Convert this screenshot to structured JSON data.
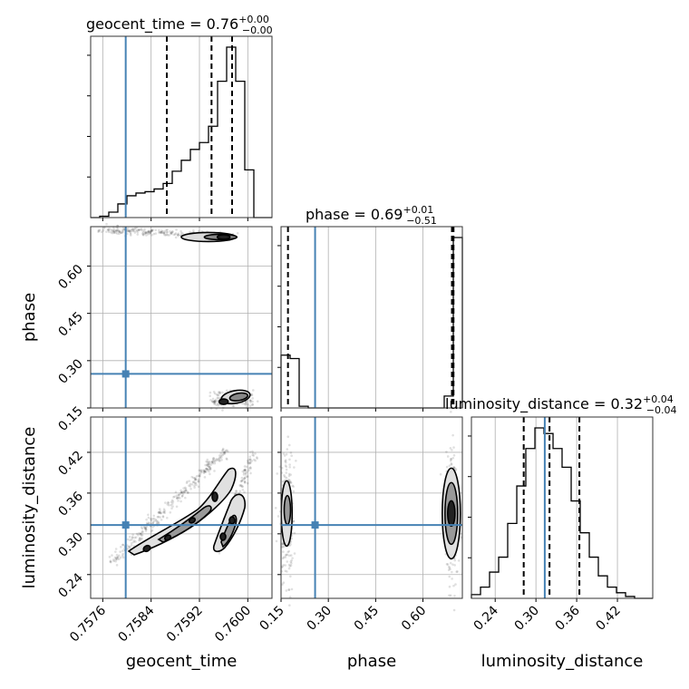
{
  "colors": {
    "truth": "#4682b4",
    "hist": "#000000",
    "contour": "#000000"
  },
  "chart_data": {
    "type": "corner",
    "parameters": [
      "geocent_time",
      "phase",
      "luminosity_distance"
    ],
    "axis_labels": {
      "geocent_time": "geocent_time",
      "phase": "phase",
      "luminosity_distance": "luminosity_distance"
    },
    "truths": {
      "geocent_time": 0.75798,
      "phase": 0.258,
      "luminosity_distance": 0.313
    },
    "ranges": {
      "geocent_time": [
        0.7574,
        0.7604
      ],
      "phase": [
        0.15,
        0.725
      ],
      "luminosity_distance": [
        0.205,
        0.472
      ]
    },
    "ticks": {
      "geocent_time": {
        "values": [
          0.7576,
          0.7584,
          0.7592,
          0.76
        ],
        "labels": [
          "0.7576",
          "0.7584",
          "0.7592",
          "0.7600"
        ]
      },
      "phase": {
        "values": [
          0.15,
          0.3,
          0.45,
          0.6
        ],
        "labels": [
          "0.15",
          "0.30",
          "0.45",
          "0.60"
        ]
      },
      "luminosity_distance": {
        "values": [
          0.24,
          0.3,
          0.36,
          0.42
        ],
        "labels": [
          "0.24",
          "0.30",
          "0.36",
          "0.42"
        ]
      }
    },
    "titles": {
      "geocent_time": {
        "name": "geocent_time = 0.76",
        "plus": "+0.00",
        "minus": "−0.00"
      },
      "phase": {
        "name": "phase = 0.69",
        "plus": "+0.01",
        "minus": "−0.51"
      },
      "luminosity_distance": {
        "name": "luminosity_distance = 0.32",
        "plus": "+0.04",
        "minus": "−0.04"
      }
    },
    "quantiles": {
      "geocent_time": [
        0.75866,
        0.7594,
        0.75974
      ],
      "phase": [
        0.172,
        0.692,
        0.697
      ],
      "luminosity_distance": [
        0.282,
        0.32,
        0.364
      ]
    },
    "histograms": {
      "geocent_time": {
        "edges": [
          0.7574,
          0.75755,
          0.7577,
          0.75785,
          0.758,
          0.75815,
          0.7583,
          0.75845,
          0.7586,
          0.75875,
          0.7589,
          0.75905,
          0.7592,
          0.75935,
          0.7595,
          0.75965,
          0.7598,
          0.75995,
          0.7601,
          0.76025,
          0.7604
        ],
        "counts": [
          0,
          1,
          4,
          10,
          16,
          18,
          19,
          21,
          25,
          34,
          42,
          50,
          55,
          67,
          100,
          125,
          100,
          35,
          0,
          0
        ]
      },
      "phase": {
        "edges": [
          0.15,
          0.1788,
          0.2075,
          0.2363,
          0.265,
          0.2938,
          0.3225,
          0.3513,
          0.38,
          0.4088,
          0.4375,
          0.4663,
          0.495,
          0.5238,
          0.5525,
          0.5813,
          0.61,
          0.6388,
          0.6675,
          0.6963,
          0.725
        ],
        "counts": [
          31,
          29,
          1,
          0,
          0,
          0,
          0,
          0,
          0,
          0,
          0,
          0,
          0,
          0,
          0,
          0,
          0,
          0,
          7,
          100
        ]
      },
      "luminosity_distance": {
        "edges": [
          0.205,
          0.2184,
          0.2317,
          0.2451,
          0.2584,
          0.2718,
          0.2851,
          0.2985,
          0.3118,
          0.3252,
          0.3385,
          0.3519,
          0.3652,
          0.3786,
          0.3919,
          0.4053,
          0.4186,
          0.432,
          0.4453,
          0.4587,
          0.472
        ],
        "counts": [
          2,
          6,
          14,
          22,
          40,
          60,
          80,
          91,
          88,
          80,
          70,
          52,
          35,
          22,
          12,
          6,
          3,
          1,
          0,
          0
        ]
      }
    },
    "grid": true
  }
}
